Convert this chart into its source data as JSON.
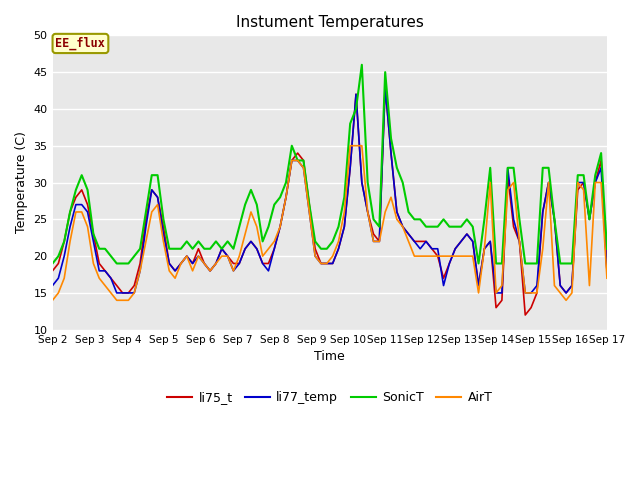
{
  "title": "Instument Temperatures",
  "xlabel": "Time",
  "ylabel": "Temperature (C)",
  "ylim": [
    10,
    50
  ],
  "xtick_labels": [
    "Sep 2",
    "Sep 3",
    "Sep 4",
    "Sep 5",
    "Sep 6",
    "Sep 7",
    "Sep 8",
    "Sep 9",
    "Sep 10",
    "Sep 11",
    "Sep 12",
    "Sep 13",
    "Sep 14",
    "Sep 15",
    "Sep 16",
    "Sep 17"
  ],
  "annotation_text": "EE_flux",
  "annotation_box_color": "#FFFFCC",
  "annotation_box_edge": "#999900",
  "annotation_text_color": "#8B0000",
  "plot_bg_color": "#E8E8E8",
  "fig_bg_color": "#FFFFFF",
  "grid_color": "#FFFFFF",
  "series_names": [
    "li75_t",
    "li77_temp",
    "SonicT",
    "AirT"
  ],
  "series_colors": [
    "#CC0000",
    "#0000CC",
    "#00CC00",
    "#FF8800"
  ],
  "series_lw": [
    1.2,
    1.2,
    1.5,
    1.2
  ],
  "x": [
    0,
    1,
    2,
    3,
    4,
    5,
    6,
    7,
    8,
    9,
    10,
    11,
    12,
    13,
    14,
    15,
    16,
    17,
    18,
    19,
    20,
    21,
    22,
    23,
    24,
    25,
    26,
    27,
    28,
    29,
    30,
    31,
    32,
    33,
    34,
    35,
    36,
    37,
    38,
    39,
    40,
    41,
    42,
    43,
    44,
    45,
    46,
    47,
    48,
    49,
    50,
    51,
    52,
    53,
    54,
    55,
    56,
    57,
    58,
    59,
    60,
    61,
    62,
    63,
    64,
    65,
    66,
    67,
    68,
    69,
    70,
    71,
    72,
    73,
    74,
    75,
    76,
    77,
    78,
    79,
    80,
    81,
    82,
    83,
    84,
    85,
    86,
    87,
    88,
    89,
    90,
    91,
    92,
    93,
    94,
    95
  ],
  "li75_t": [
    18,
    19,
    22,
    26,
    28,
    29,
    27,
    23,
    19,
    18,
    17,
    16,
    15,
    15,
    16,
    19,
    25,
    29,
    28,
    24,
    19,
    18,
    19,
    20,
    19,
    21,
    19,
    18,
    19,
    21,
    20,
    19,
    19,
    21,
    22,
    21,
    19,
    19,
    21,
    24,
    28,
    33,
    34,
    33,
    27,
    21,
    19,
    19,
    19,
    21,
    24,
    32,
    42,
    30,
    26,
    23,
    22,
    43,
    34,
    26,
    24,
    23,
    22,
    22,
    22,
    21,
    20,
    17,
    19,
    21,
    22,
    23,
    22,
    16,
    21,
    22,
    13,
    14,
    31,
    24,
    22,
    12,
    13,
    15,
    26,
    30,
    25,
    16,
    15,
    16,
    29,
    30,
    25,
    30,
    33,
    18
  ],
  "li77_temp": [
    16,
    17,
    20,
    24,
    27,
    27,
    26,
    22,
    18,
    18,
    17,
    15,
    15,
    15,
    15,
    18,
    24,
    29,
    28,
    23,
    19,
    18,
    19,
    20,
    19,
    20,
    19,
    18,
    19,
    21,
    20,
    18,
    19,
    21,
    22,
    21,
    19,
    18,
    21,
    24,
    28,
    33,
    33,
    32,
    26,
    20,
    19,
    19,
    19,
    21,
    24,
    32,
    42,
    30,
    26,
    22,
    22,
    43,
    34,
    26,
    24,
    23,
    22,
    21,
    22,
    21,
    21,
    16,
    19,
    21,
    22,
    23,
    22,
    16,
    21,
    22,
    15,
    15,
    32,
    25,
    22,
    15,
    15,
    16,
    26,
    30,
    25,
    16,
    15,
    16,
    30,
    30,
    25,
    30,
    32,
    18
  ],
  "SonicT": [
    19,
    20,
    22,
    26,
    29,
    31,
    29,
    23,
    21,
    21,
    20,
    19,
    19,
    19,
    20,
    21,
    26,
    31,
    31,
    25,
    21,
    21,
    21,
    22,
    21,
    22,
    21,
    21,
    22,
    21,
    22,
    21,
    24,
    27,
    29,
    27,
    22,
    24,
    27,
    28,
    30,
    35,
    33,
    33,
    27,
    22,
    21,
    21,
    22,
    24,
    28,
    38,
    40,
    46,
    30,
    25,
    24,
    45,
    36,
    32,
    30,
    26,
    25,
    25,
    24,
    24,
    24,
    25,
    24,
    24,
    24,
    25,
    24,
    19,
    25,
    32,
    19,
    19,
    32,
    32,
    25,
    19,
    19,
    19,
    32,
    32,
    25,
    19,
    19,
    19,
    31,
    31,
    25,
    31,
    34,
    21
  ],
  "AirT": [
    14,
    15,
    17,
    22,
    26,
    26,
    24,
    19,
    17,
    16,
    15,
    14,
    14,
    14,
    15,
    18,
    22,
    26,
    27,
    22,
    18,
    17,
    19,
    20,
    18,
    20,
    19,
    18,
    19,
    20,
    20,
    18,
    20,
    23,
    26,
    24,
    20,
    21,
    22,
    24,
    28,
    33,
    33,
    32,
    26,
    20,
    19,
    19,
    20,
    22,
    26,
    35,
    35,
    35,
    26,
    22,
    22,
    26,
    28,
    25,
    24,
    22,
    20,
    20,
    20,
    20,
    20,
    20,
    20,
    20,
    20,
    20,
    20,
    15,
    21,
    30,
    15,
    16,
    29,
    30,
    22,
    15,
    15,
    15,
    21,
    30,
    16,
    15,
    14,
    15,
    30,
    29,
    16,
    30,
    30,
    17
  ]
}
